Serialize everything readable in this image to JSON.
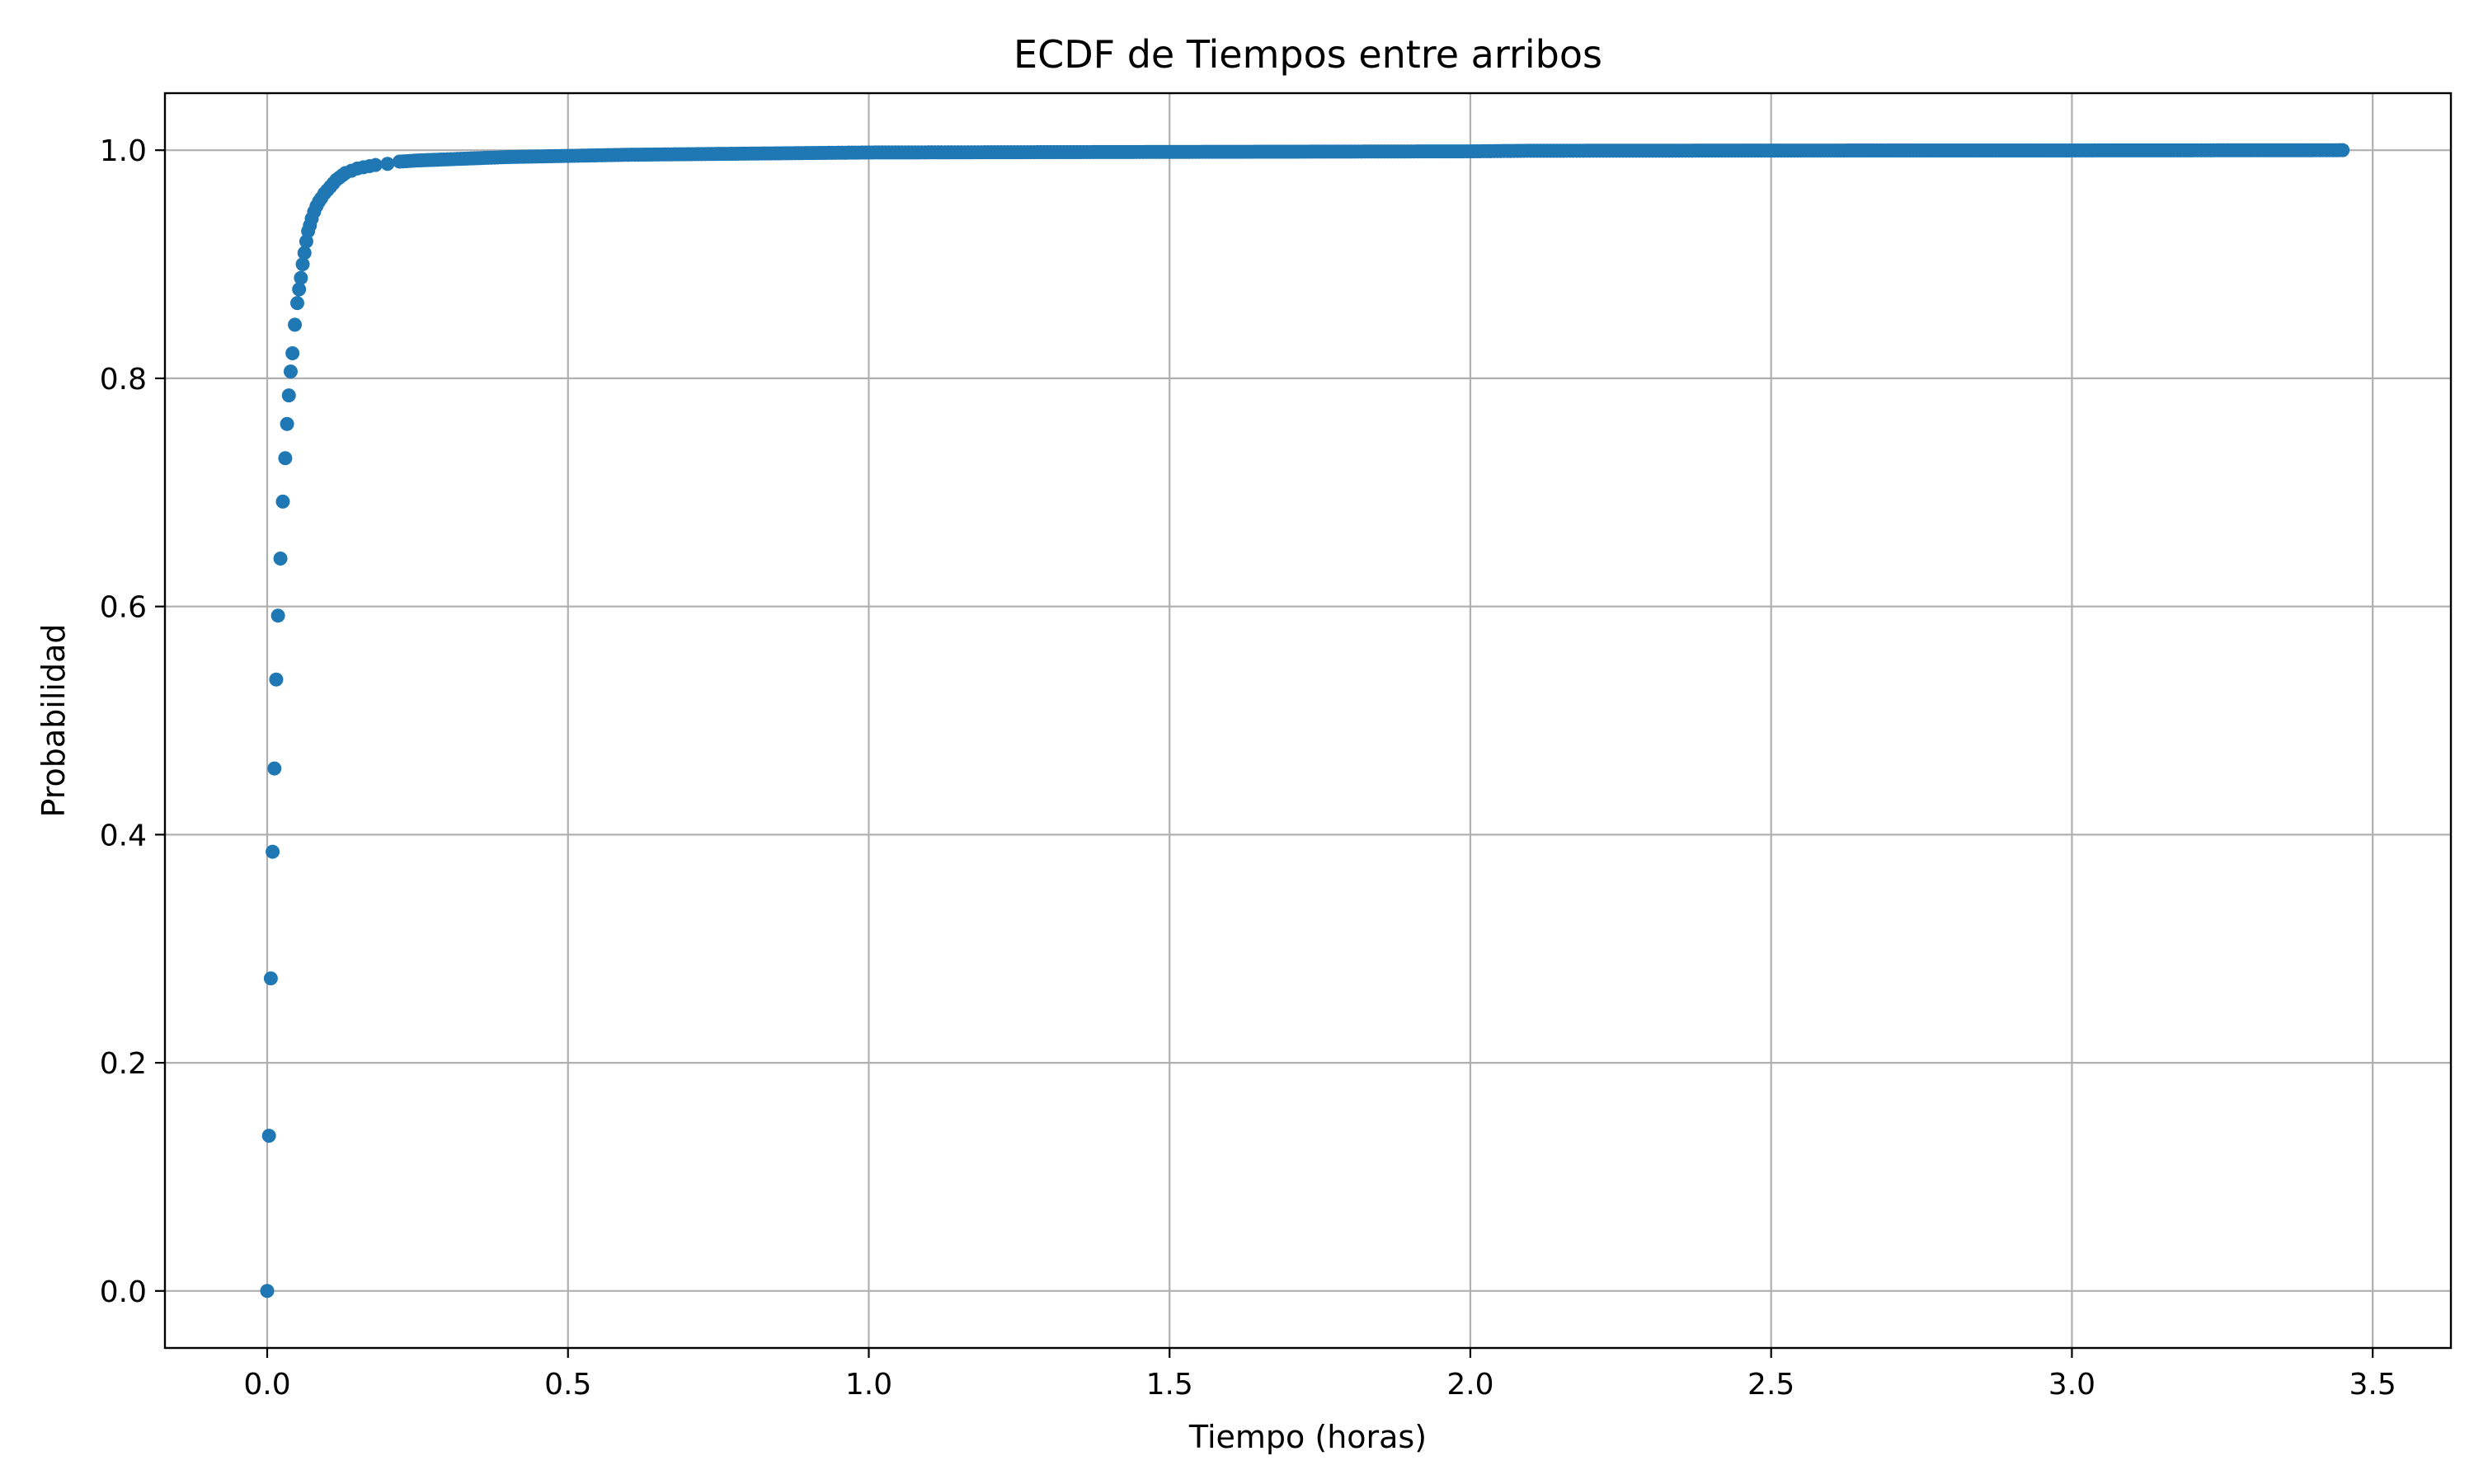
{
  "chart_data": {
    "type": "scatter",
    "title": "ECDF de Tiempos entre arribos",
    "xlabel": "Tiempo (horas)",
    "ylabel": "Probabilidad",
    "xlim": [
      -0.17,
      3.63
    ],
    "ylim": [
      -0.05,
      1.05
    ],
    "xticks": [
      0.0,
      0.5,
      1.0,
      1.5,
      2.0,
      2.5,
      3.0,
      3.5
    ],
    "xtick_labels": [
      "0.0",
      "0.5",
      "1.0",
      "1.5",
      "2.0",
      "2.5",
      "3.0",
      "3.5"
    ],
    "yticks": [
      0.0,
      0.2,
      0.4,
      0.6,
      0.8,
      1.0
    ],
    "ytick_labels": [
      "0.0",
      "0.2",
      "0.4",
      "0.6",
      "0.8",
      "1.0"
    ],
    "grid": true,
    "marker_color": "#1f77b4",
    "points": {
      "x": [
        0.0,
        0.003,
        0.006,
        0.009,
        0.012,
        0.015,
        0.018,
        0.022,
        0.026,
        0.03,
        0.033,
        0.036,
        0.039,
        0.042,
        0.046,
        0.05,
        0.053,
        0.056,
        0.059,
        0.062,
        0.065,
        0.068,
        0.071,
        0.074,
        0.078,
        0.082,
        0.086,
        0.09,
        0.095,
        0.1,
        0.105,
        0.11,
        0.115,
        0.12,
        0.125,
        0.13,
        0.14,
        0.15,
        0.16,
        0.17,
        0.18,
        0.2,
        0.22,
        0.25,
        0.3,
        0.35,
        0.4,
        0.5,
        0.6,
        0.8,
        1.0,
        1.5,
        2.0,
        2.1,
        2.5,
        3.0,
        3.45
      ],
      "y": [
        0.0,
        0.136,
        0.274,
        0.385,
        0.458,
        0.536,
        0.592,
        0.642,
        0.692,
        0.73,
        0.76,
        0.785,
        0.806,
        0.822,
        0.847,
        0.866,
        0.878,
        0.888,
        0.9,
        0.91,
        0.92,
        0.929,
        0.934,
        0.94,
        0.946,
        0.951,
        0.955,
        0.958,
        0.962,
        0.965,
        0.968,
        0.971,
        0.974,
        0.976,
        0.978,
        0.98,
        0.982,
        0.984,
        0.985,
        0.986,
        0.987,
        0.988,
        0.99,
        0.991,
        0.992,
        0.993,
        0.994,
        0.995,
        0.996,
        0.997,
        0.998,
        0.9985,
        0.999,
        0.9995,
        0.9997,
        0.9998,
        1.0
      ]
    }
  }
}
